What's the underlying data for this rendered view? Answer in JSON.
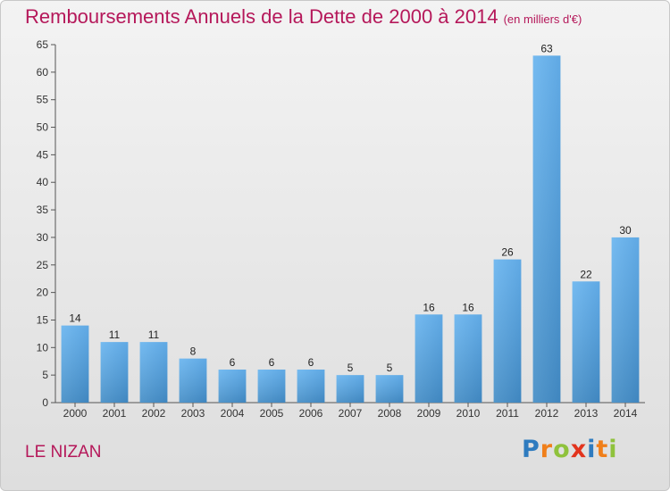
{
  "chart_data": {
    "type": "bar",
    "title": "Remboursements Annuels de la Dette de 2000 à 2014",
    "unit_note": "(en milliers d'€)",
    "xlabel": "",
    "ylabel": "",
    "categories": [
      "2000",
      "2001",
      "2002",
      "2003",
      "2004",
      "2005",
      "2006",
      "2007",
      "2008",
      "2009",
      "2010",
      "2011",
      "2012",
      "2013",
      "2014"
    ],
    "values": [
      14,
      11,
      11,
      8,
      6,
      6,
      6,
      5,
      5,
      16,
      16,
      26,
      63,
      22,
      30
    ],
    "ylim": [
      0,
      65
    ],
    "yticks": [
      0,
      5,
      10,
      15,
      20,
      25,
      30,
      35,
      40,
      45,
      50,
      55,
      60,
      65
    ],
    "grid": false,
    "bar_color": "#3d8fd8"
  },
  "commune": "LE NIZAN",
  "brand": {
    "text": "Proxiti",
    "letter_colors": [
      "#2e7bbf",
      "#f07f1a",
      "#8fc23c",
      "#e2341d",
      "#2e7bbf",
      "#f07f1a",
      "#8fc23c"
    ]
  }
}
